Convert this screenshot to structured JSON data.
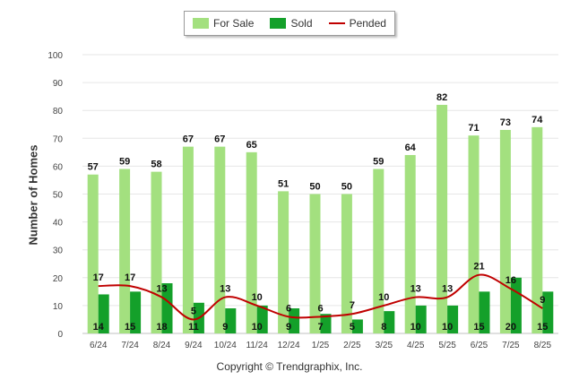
{
  "chart_data": {
    "type": "bar",
    "categories": [
      "6/24",
      "7/24",
      "8/24",
      "9/24",
      "10/24",
      "11/24",
      "12/24",
      "1/25",
      "2/25",
      "3/25",
      "4/25",
      "5/25",
      "6/25",
      "7/25",
      "8/25"
    ],
    "series": [
      {
        "name": "For Sale",
        "type": "bar",
        "color": "#a3e07f",
        "values": [
          57,
          59,
          58,
          67,
          67,
          65,
          51,
          50,
          50,
          59,
          64,
          82,
          71,
          73,
          74
        ]
      },
      {
        "name": "Sold",
        "type": "bar",
        "color": "#14a02a",
        "values": [
          14,
          15,
          18,
          11,
          9,
          10,
          9,
          7,
          5,
          8,
          10,
          10,
          15,
          20,
          15
        ]
      },
      {
        "name": "Pended",
        "type": "line",
        "color": "#c00000",
        "values": [
          17,
          17,
          13,
          5,
          13,
          10,
          6,
          6,
          7,
          10,
          13,
          13,
          21,
          16,
          9
        ]
      }
    ],
    "ylabel": "Number of Homes",
    "ylim": [
      0,
      100
    ],
    "yticks": [
      0,
      10,
      20,
      30,
      40,
      50,
      60,
      70,
      80,
      90,
      100
    ],
    "grid": true,
    "legend": "top-center"
  },
  "copyright": "Copyright © Trendgraphix, Inc."
}
